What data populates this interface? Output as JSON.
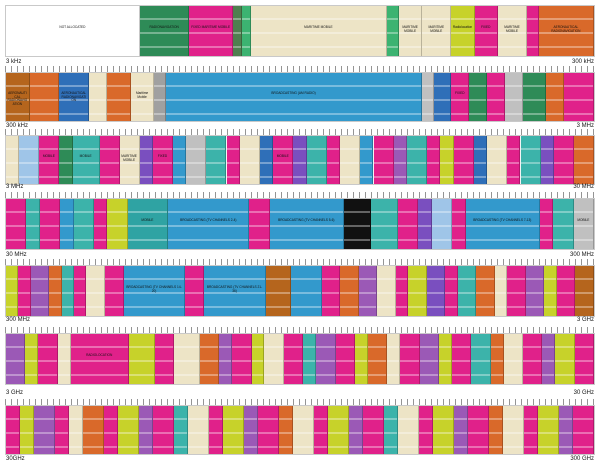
{
  "bands": [
    {
      "start_label": "3 kHz",
      "end_label": "300 kHz",
      "segments": [
        {
          "w": 23,
          "c": "#ffffff",
          "t": "NOT ALLOCATED"
        },
        {
          "w": 8.5,
          "c": "#2e8b57",
          "t": "RADIONAVIGATION"
        },
        {
          "w": 7.5,
          "c": "#e0218a",
          "t": "FIXED MARITIME MOBILE"
        },
        {
          "w": 1.5,
          "c": "#4f7f4f",
          "t": ""
        },
        {
          "w": 1.5,
          "c": "#3cb371",
          "t": ""
        },
        {
          "w": 23.5,
          "c": "#ede4c6",
          "t": "MARITIME MOBILE"
        },
        {
          "w": 2,
          "c": "#3cb371",
          "t": ""
        },
        {
          "w": 4,
          "c": "#ede4c6",
          "t": "MARITIME MOBILE"
        },
        {
          "w": 5,
          "c": "#ede4c6",
          "t": "MARITIME MOBILE"
        },
        {
          "w": 4,
          "c": "#c7d22a",
          "t": "Radiolocation"
        },
        {
          "w": 4,
          "c": "#e0218a",
          "t": "FIXED"
        },
        {
          "w": 5,
          "c": "#ede4c6",
          "t": "MARITIME MOBILE"
        },
        {
          "w": 2,
          "c": "#e0218a",
          "t": ""
        },
        {
          "w": 9.5,
          "c": "#d9692a",
          "t": "AERONAUTICAL RADIONAVIGATION"
        }
      ]
    },
    {
      "start_label": "300 kHz",
      "end_label": "3 MHz",
      "segments": [
        {
          "w": 4,
          "c": "#b5651d",
          "t": "AERONAUTICAL RADIONAVIGATION"
        },
        {
          "w": 5,
          "c": "#d9692a",
          "t": ""
        },
        {
          "w": 5,
          "c": "#2f6fb8",
          "t": "AERONAUTICAL RADIONAVIGATION"
        },
        {
          "w": 3,
          "c": "#ede4c6",
          "t": ""
        },
        {
          "w": 4,
          "c": "#d9692a",
          "t": ""
        },
        {
          "w": 4,
          "c": "#ede4c6",
          "t": "Maritime Mobile"
        },
        {
          "w": 2,
          "c": "#a0a0a0",
          "t": ""
        },
        {
          "w": 43,
          "c": "#3399cc",
          "t": "BROADCASTING (AM RADIO)"
        },
        {
          "w": 2,
          "c": "#c0c0c0",
          "t": ""
        },
        {
          "w": 3,
          "c": "#2f6fb8",
          "t": ""
        },
        {
          "w": 3,
          "c": "#e0218a",
          "t": "FIXED"
        },
        {
          "w": 3,
          "c": "#2e8b57",
          "t": ""
        },
        {
          "w": 3,
          "c": "#e0218a",
          "t": ""
        },
        {
          "w": 3,
          "c": "#c0c0c0",
          "t": ""
        },
        {
          "w": 4,
          "c": "#2e8b57",
          "t": ""
        },
        {
          "w": 3,
          "c": "#d9692a",
          "t": ""
        },
        {
          "w": 5,
          "c": "#e0218a",
          "t": ""
        }
      ]
    },
    {
      "start_label": "3 MHz",
      "end_label": "30 MHz",
      "segments": [
        {
          "w": 2,
          "c": "#ede4c6",
          "t": ""
        },
        {
          "w": 3,
          "c": "#9fc5e8",
          "t": ""
        },
        {
          "w": 3,
          "c": "#e0218a",
          "t": "MOBILE"
        },
        {
          "w": 2,
          "c": "#2e8b57",
          "t": ""
        },
        {
          "w": 4,
          "c": "#3cb3aa",
          "t": "MOBILE"
        },
        {
          "w": 3,
          "c": "#e0218a",
          "t": ""
        },
        {
          "w": 3,
          "c": "#ede4c6",
          "t": "MARITIME MOBILE"
        },
        {
          "w": 2,
          "c": "#7a4fbf",
          "t": ""
        },
        {
          "w": 3,
          "c": "#e0218a",
          "t": "FIXED"
        },
        {
          "w": 2,
          "c": "#3399cc",
          "t": ""
        },
        {
          "w": 3,
          "c": "#c0c0c0",
          "t": ""
        },
        {
          "w": 3,
          "c": "#3cb3aa",
          "t": ""
        },
        {
          "w": 2,
          "c": "#e0218a",
          "t": ""
        },
        {
          "w": 3,
          "c": "#ede4c6",
          "t": ""
        },
        {
          "w": 2,
          "c": "#2f6fb8",
          "t": ""
        },
        {
          "w": 3,
          "c": "#e0218a",
          "t": "MOBILE"
        },
        {
          "w": 2,
          "c": "#7a4fbf",
          "t": ""
        },
        {
          "w": 3,
          "c": "#3cb3aa",
          "t": ""
        },
        {
          "w": 2,
          "c": "#e0218a",
          "t": ""
        },
        {
          "w": 3,
          "c": "#ede4c6",
          "t": ""
        },
        {
          "w": 2,
          "c": "#3399cc",
          "t": ""
        },
        {
          "w": 3,
          "c": "#e0218a",
          "t": ""
        },
        {
          "w": 2,
          "c": "#9b59b6",
          "t": ""
        },
        {
          "w": 3,
          "c": "#3cb3aa",
          "t": ""
        },
        {
          "w": 2,
          "c": "#e0218a",
          "t": ""
        },
        {
          "w": 2,
          "c": "#c7d22a",
          "t": ""
        },
        {
          "w": 3,
          "c": "#e0218a",
          "t": ""
        },
        {
          "w": 2,
          "c": "#2f6fb8",
          "t": ""
        },
        {
          "w": 3,
          "c": "#ede4c6",
          "t": ""
        },
        {
          "w": 2,
          "c": "#e0218a",
          "t": ""
        },
        {
          "w": 3,
          "c": "#3cb3aa",
          "t": ""
        },
        {
          "w": 2,
          "c": "#7a4fbf",
          "t": ""
        },
        {
          "w": 3,
          "c": "#e0218a",
          "t": ""
        },
        {
          "w": 3,
          "c": "#d9692a",
          "t": ""
        }
      ]
    },
    {
      "start_label": "30 MHz",
      "end_label": "300 MHz",
      "segments": [
        {
          "w": 3,
          "c": "#e0218a",
          "t": ""
        },
        {
          "w": 2,
          "c": "#3cb3aa",
          "t": ""
        },
        {
          "w": 3,
          "c": "#e0218a",
          "t": ""
        },
        {
          "w": 2,
          "c": "#3399cc",
          "t": ""
        },
        {
          "w": 3,
          "c": "#3cb3aa",
          "t": ""
        },
        {
          "w": 2,
          "c": "#e0218a",
          "t": ""
        },
        {
          "w": 3,
          "c": "#c7d22a",
          "t": ""
        },
        {
          "w": 6,
          "c": "#2fa3a3",
          "t": "MOBILE"
        },
        {
          "w": 12,
          "c": "#3399cc",
          "t": "BROADCASTING (TV CHANNELS 2-4)"
        },
        {
          "w": 3,
          "c": "#e0218a",
          "t": ""
        },
        {
          "w": 11,
          "c": "#3399cc",
          "t": "BROADCASTING (TV CHANNELS 5-6)"
        },
        {
          "w": 4,
          "c": "#111111",
          "t": ""
        },
        {
          "w": 4,
          "c": "#3cb3aa",
          "t": ""
        },
        {
          "w": 3,
          "c": "#e0218a",
          "t": ""
        },
        {
          "w": 2,
          "c": "#7a4fbf",
          "t": ""
        },
        {
          "w": 3,
          "c": "#9fc5e8",
          "t": ""
        },
        {
          "w": 2,
          "c": "#e0218a",
          "t": ""
        },
        {
          "w": 11,
          "c": "#3399cc",
          "t": "BROADCASTING (TV CHANNELS 7-13)"
        },
        {
          "w": 2,
          "c": "#e0218a",
          "t": ""
        },
        {
          "w": 3,
          "c": "#3cb3aa",
          "t": ""
        },
        {
          "w": 3,
          "c": "#c0c0c0",
          "t": "MOBILE"
        }
      ]
    },
    {
      "start_label": "300 MHz",
      "end_label": "3 GHz",
      "segments": [
        {
          "w": 2,
          "c": "#c7d22a",
          "t": ""
        },
        {
          "w": 2,
          "c": "#e0218a",
          "t": ""
        },
        {
          "w": 3,
          "c": "#9b59b6",
          "t": ""
        },
        {
          "w": 2,
          "c": "#d9692a",
          "t": ""
        },
        {
          "w": 2,
          "c": "#3cb3aa",
          "t": ""
        },
        {
          "w": 2,
          "c": "#e0218a",
          "t": ""
        },
        {
          "w": 3,
          "c": "#ede4c6",
          "t": ""
        },
        {
          "w": 3,
          "c": "#e0218a",
          "t": ""
        },
        {
          "w": 10,
          "c": "#3399cc",
          "t": "BROADCASTING (TV CHANNELS 14-20)"
        },
        {
          "w": 3,
          "c": "#e0218a",
          "t": ""
        },
        {
          "w": 10,
          "c": "#3399cc",
          "t": "BROADCASTING (TV CHANNELS 21-36)"
        },
        {
          "w": 4,
          "c": "#b5651d",
          "t": ""
        },
        {
          "w": 5,
          "c": "#3399cc",
          "t": ""
        },
        {
          "w": 3,
          "c": "#e0218a",
          "t": ""
        },
        {
          "w": 3,
          "c": "#d9692a",
          "t": ""
        },
        {
          "w": 3,
          "c": "#9b59b6",
          "t": ""
        },
        {
          "w": 3,
          "c": "#ede4c6",
          "t": ""
        },
        {
          "w": 2,
          "c": "#e0218a",
          "t": ""
        },
        {
          "w": 3,
          "c": "#c7d22a",
          "t": ""
        },
        {
          "w": 3,
          "c": "#7a4fbf",
          "t": ""
        },
        {
          "w": 2,
          "c": "#e0218a",
          "t": ""
        },
        {
          "w": 3,
          "c": "#3cb3aa",
          "t": ""
        },
        {
          "w": 3,
          "c": "#d9692a",
          "t": ""
        },
        {
          "w": 2,
          "c": "#ede4c6",
          "t": ""
        },
        {
          "w": 3,
          "c": "#e0218a",
          "t": ""
        },
        {
          "w": 3,
          "c": "#9b59b6",
          "t": ""
        },
        {
          "w": 2,
          "c": "#c7d22a",
          "t": ""
        },
        {
          "w": 3,
          "c": "#e0218a",
          "t": ""
        },
        {
          "w": 3,
          "c": "#b5651d",
          "t": ""
        }
      ]
    },
    {
      "start_label": "3 GHz",
      "end_label": "30 GHz",
      "segments": [
        {
          "w": 3,
          "c": "#9b59b6",
          "t": ""
        },
        {
          "w": 2,
          "c": "#c7d22a",
          "t": ""
        },
        {
          "w": 3,
          "c": "#e0218a",
          "t": ""
        },
        {
          "w": 2,
          "c": "#ede4c6",
          "t": ""
        },
        {
          "w": 9,
          "c": "#e0218a",
          "t": "RADIOLOCATION"
        },
        {
          "w": 4,
          "c": "#c7d22a",
          "t": ""
        },
        {
          "w": 3,
          "c": "#e0218a",
          "t": ""
        },
        {
          "w": 4,
          "c": "#ede4c6",
          "t": ""
        },
        {
          "w": 3,
          "c": "#d9692a",
          "t": ""
        },
        {
          "w": 2,
          "c": "#9b59b6",
          "t": ""
        },
        {
          "w": 3,
          "c": "#e0218a",
          "t": ""
        },
        {
          "w": 2,
          "c": "#c7d22a",
          "t": ""
        },
        {
          "w": 3,
          "c": "#ede4c6",
          "t": ""
        },
        {
          "w": 3,
          "c": "#e0218a",
          "t": ""
        },
        {
          "w": 2,
          "c": "#3cb3aa",
          "t": ""
        },
        {
          "w": 3,
          "c": "#9b59b6",
          "t": ""
        },
        {
          "w": 3,
          "c": "#e0218a",
          "t": ""
        },
        {
          "w": 2,
          "c": "#c7d22a",
          "t": ""
        },
        {
          "w": 3,
          "c": "#d9692a",
          "t": ""
        },
        {
          "w": 2,
          "c": "#ede4c6",
          "t": ""
        },
        {
          "w": 3,
          "c": "#e0218a",
          "t": ""
        },
        {
          "w": 3,
          "c": "#9b59b6",
          "t": ""
        },
        {
          "w": 2,
          "c": "#c7d22a",
          "t": ""
        },
        {
          "w": 3,
          "c": "#e0218a",
          "t": ""
        },
        {
          "w": 3,
          "c": "#3cb3aa",
          "t": ""
        },
        {
          "w": 2,
          "c": "#d9692a",
          "t": ""
        },
        {
          "w": 3,
          "c": "#ede4c6",
          "t": ""
        },
        {
          "w": 3,
          "c": "#e0218a",
          "t": ""
        },
        {
          "w": 2,
          "c": "#9b59b6",
          "t": ""
        },
        {
          "w": 3,
          "c": "#c7d22a",
          "t": ""
        },
        {
          "w": 3,
          "c": "#e0218a",
          "t": ""
        }
      ]
    },
    {
      "start_label": "30GHz",
      "end_label": "300 GHz",
      "segments": [
        {
          "w": 2,
          "c": "#e0218a",
          "t": ""
        },
        {
          "w": 2,
          "c": "#c7d22a",
          "t": ""
        },
        {
          "w": 3,
          "c": "#9b59b6",
          "t": ""
        },
        {
          "w": 2,
          "c": "#e0218a",
          "t": ""
        },
        {
          "w": 2,
          "c": "#ede4c6",
          "t": ""
        },
        {
          "w": 3,
          "c": "#d9692a",
          "t": ""
        },
        {
          "w": 2,
          "c": "#e0218a",
          "t": ""
        },
        {
          "w": 3,
          "c": "#c7d22a",
          "t": ""
        },
        {
          "w": 2,
          "c": "#9b59b6",
          "t": ""
        },
        {
          "w": 3,
          "c": "#e0218a",
          "t": ""
        },
        {
          "w": 2,
          "c": "#3cb3aa",
          "t": ""
        },
        {
          "w": 3,
          "c": "#ede4c6",
          "t": ""
        },
        {
          "w": 2,
          "c": "#e0218a",
          "t": ""
        },
        {
          "w": 3,
          "c": "#c7d22a",
          "t": ""
        },
        {
          "w": 2,
          "c": "#9b59b6",
          "t": ""
        },
        {
          "w": 3,
          "c": "#e0218a",
          "t": ""
        },
        {
          "w": 2,
          "c": "#d9692a",
          "t": ""
        },
        {
          "w": 3,
          "c": "#ede4c6",
          "t": ""
        },
        {
          "w": 2,
          "c": "#e0218a",
          "t": ""
        },
        {
          "w": 3,
          "c": "#c7d22a",
          "t": ""
        },
        {
          "w": 2,
          "c": "#9b59b6",
          "t": ""
        },
        {
          "w": 3,
          "c": "#e0218a",
          "t": ""
        },
        {
          "w": 2,
          "c": "#3cb3aa",
          "t": ""
        },
        {
          "w": 3,
          "c": "#ede4c6",
          "t": ""
        },
        {
          "w": 2,
          "c": "#e0218a",
          "t": ""
        },
        {
          "w": 3,
          "c": "#c7d22a",
          "t": ""
        },
        {
          "w": 2,
          "c": "#9b59b6",
          "t": ""
        },
        {
          "w": 3,
          "c": "#e0218a",
          "t": ""
        },
        {
          "w": 2,
          "c": "#d9692a",
          "t": ""
        },
        {
          "w": 3,
          "c": "#ede4c6",
          "t": ""
        },
        {
          "w": 2,
          "c": "#e0218a",
          "t": ""
        },
        {
          "w": 3,
          "c": "#c7d22a",
          "t": ""
        },
        {
          "w": 2,
          "c": "#9b59b6",
          "t": ""
        },
        {
          "w": 3,
          "c": "#e0218a",
          "t": ""
        }
      ]
    }
  ]
}
